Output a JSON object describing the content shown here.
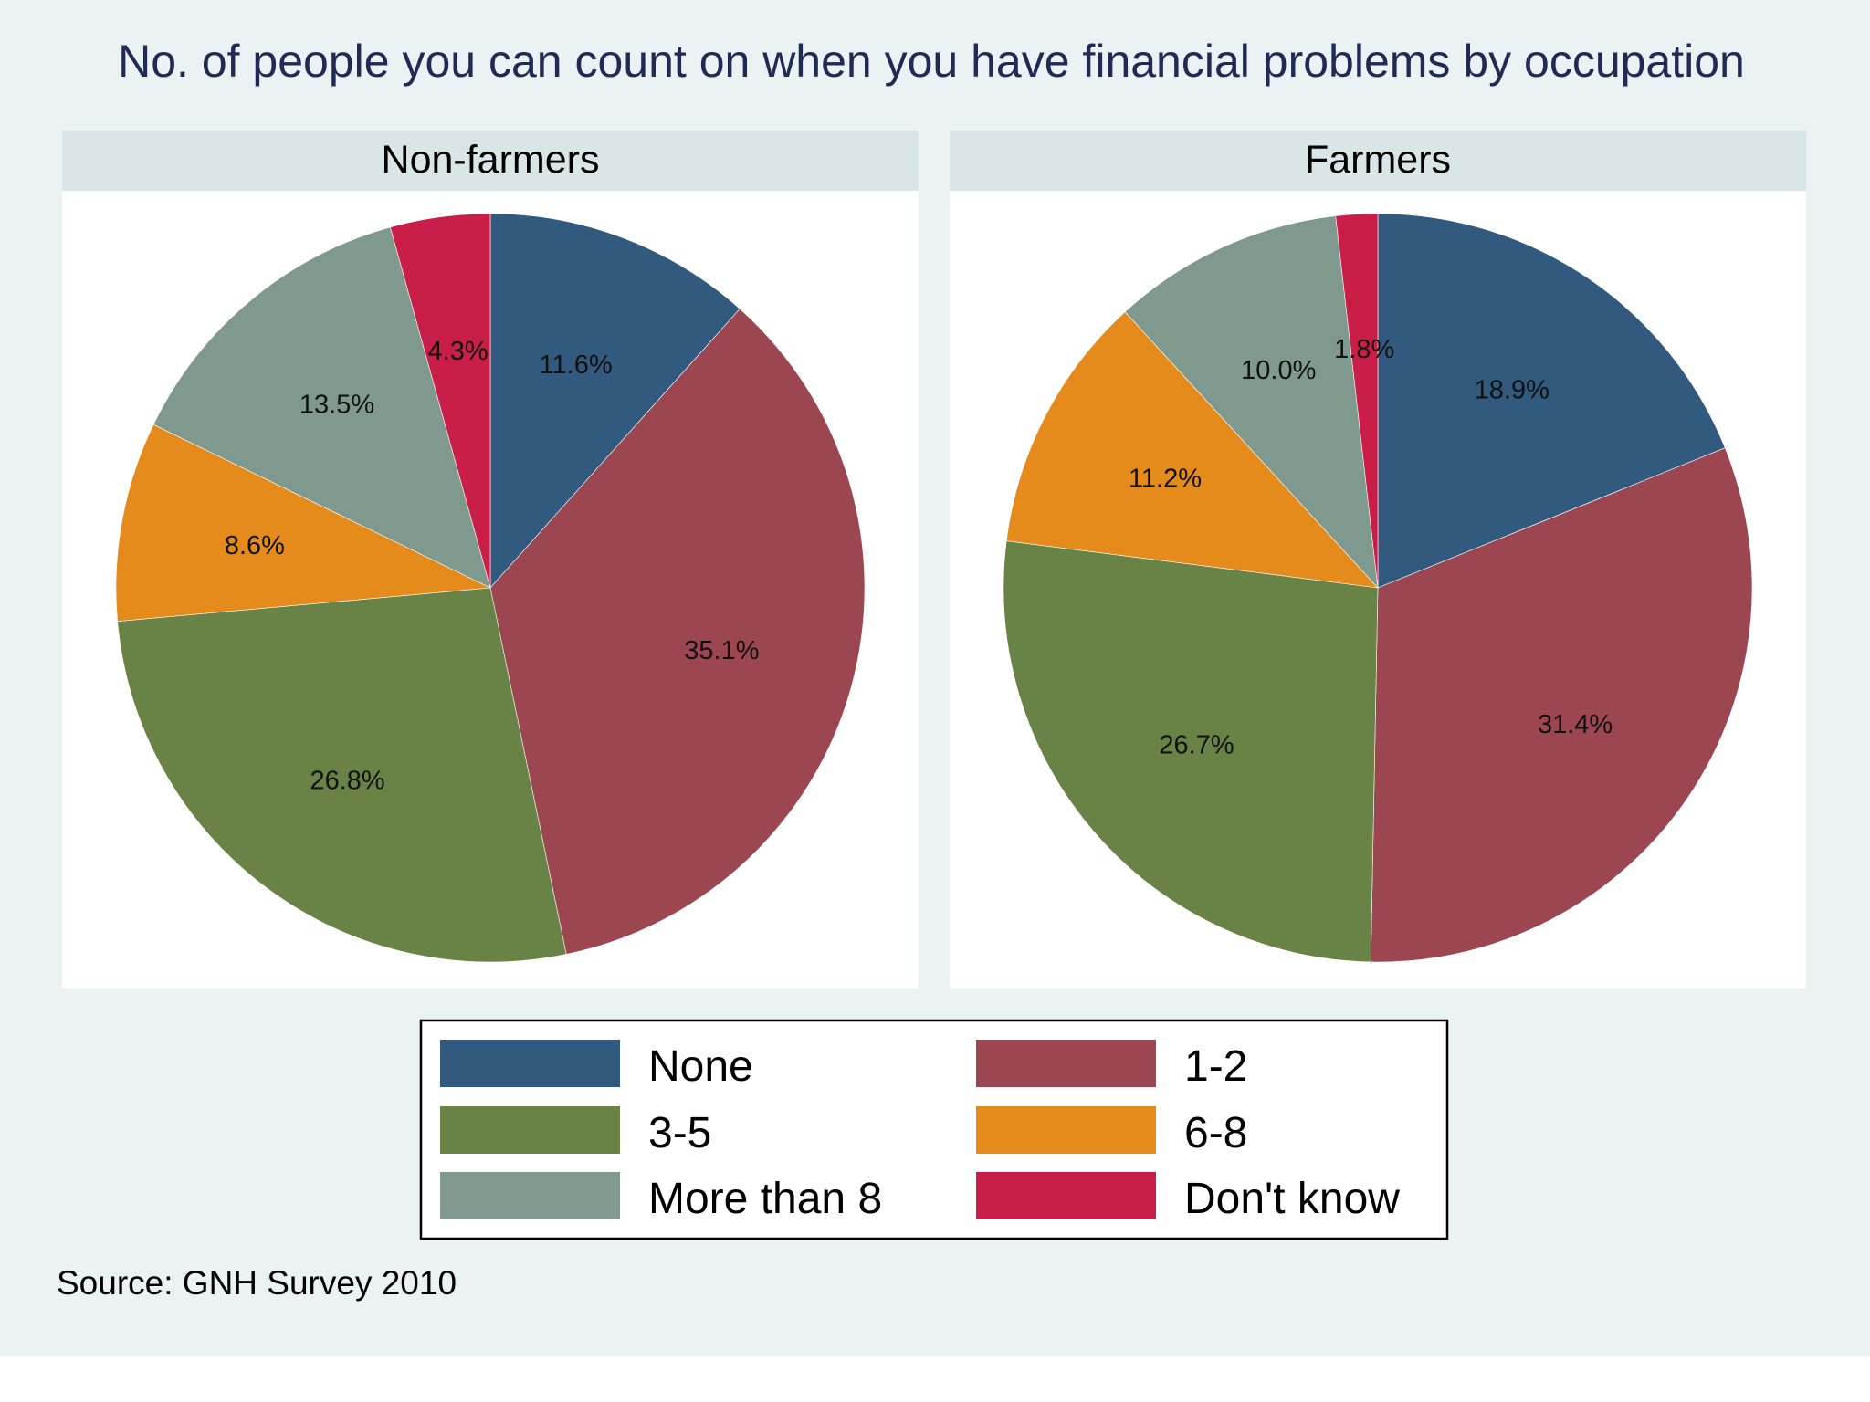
{
  "title": "No. of people you can count on when you have financial problems by occupation",
  "source_note": "Source: GNH Survey 2010",
  "colors": {
    "background": "#eaf2f3",
    "panel_header": "#d9e6e8",
    "plot_area": "#ffffff",
    "title_text": "#1f2a55"
  },
  "legend": {
    "position": "bottom-center",
    "columns": 2,
    "items": [
      {
        "label": "None",
        "color": "#325a7e"
      },
      {
        "label": "1-2",
        "color": "#9b4651"
      },
      {
        "label": "3-5",
        "color": "#688345"
      },
      {
        "label": "6-8",
        "color": "#e48b1c"
      },
      {
        "label": "More than 8",
        "color": "#7f998f"
      },
      {
        "label": "Don't know",
        "color": "#c81e48"
      }
    ]
  },
  "chart_data": [
    {
      "type": "pie",
      "title": "Non-farmers",
      "categories": [
        "None",
        "1-2",
        "3-5",
        "6-8",
        "More than 8",
        "Don't know"
      ],
      "values": [
        11.6,
        35.1,
        26.8,
        8.6,
        13.5,
        4.3
      ],
      "labels": [
        "11.6%",
        "35.1%",
        "26.8%",
        "8.6%",
        "13.5%",
        "4.3%"
      ],
      "start": "12 o'clock",
      "direction": "clockwise"
    },
    {
      "type": "pie",
      "title": "Farmers",
      "categories": [
        "None",
        "1-2",
        "3-5",
        "6-8",
        "More than 8",
        "Don't know"
      ],
      "values": [
        18.9,
        31.4,
        26.7,
        11.2,
        10.0,
        1.8
      ],
      "labels": [
        "18.9%",
        "31.4%",
        "26.7%",
        "11.2%",
        "10.0%",
        "1.8%"
      ],
      "start": "12 o'clock",
      "direction": "clockwise"
    }
  ]
}
